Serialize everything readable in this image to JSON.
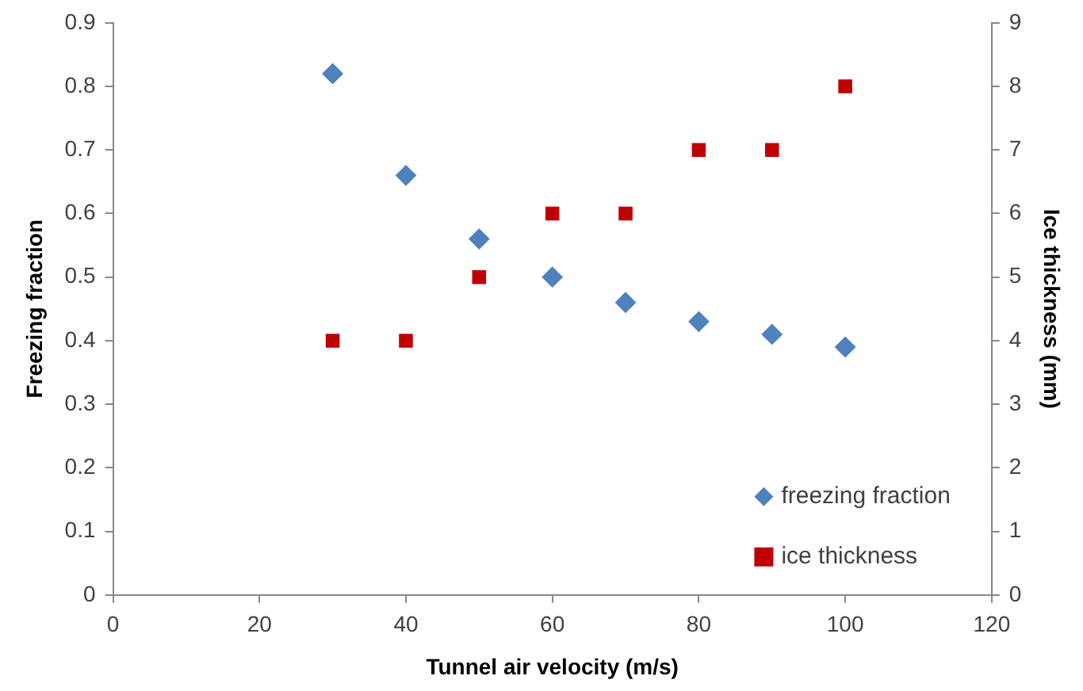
{
  "chart_data": {
    "type": "scatter",
    "xlabel": "Tunnel air velocity (m/s)",
    "ylabel": "Freezing fraction",
    "y2label": "Ice thickness (mm)",
    "x": [
      30,
      40,
      50,
      60,
      70,
      80,
      90,
      100
    ],
    "series": [
      {
        "name": "freezing fraction",
        "color": "#4f81bd",
        "marker": "diamond",
        "values": [
          0.82,
          0.66,
          0.56,
          0.5,
          0.46,
          0.43,
          0.41,
          0.39
        ]
      },
      {
        "name": "ice thickness",
        "color": "#c00000",
        "marker": "square",
        "axis": "y2",
        "values": [
          4,
          4,
          5,
          6,
          6,
          7,
          7,
          8
        ]
      }
    ],
    "xlim": [
      0,
      120
    ],
    "xticks": [
      0,
      20,
      40,
      60,
      80,
      100,
      120
    ],
    "ylim": [
      0,
      0.9
    ],
    "yticks": [
      0,
      0.1,
      0.2,
      0.3,
      0.4,
      0.5,
      0.6,
      0.7,
      0.8,
      0.9
    ],
    "y2lim": [
      0,
      9
    ],
    "y2ticks": [
      0,
      1,
      2,
      3,
      4,
      5,
      6,
      7,
      8,
      9
    ],
    "grid": false,
    "legend": "bottom right"
  }
}
